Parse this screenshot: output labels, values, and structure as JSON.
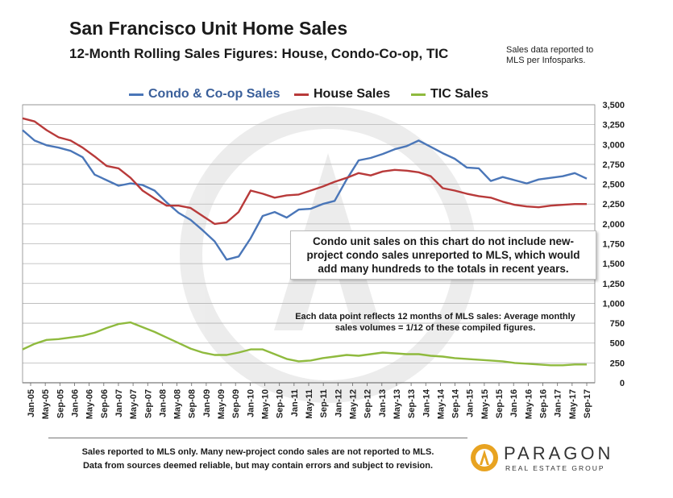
{
  "header": {
    "title": "San Francisco Unit Home Sales",
    "subtitle": "12-Month Rolling Sales Figures: House, Condo-Co-op, TIC",
    "source_note": "Sales data reported to MLS per Infosparks."
  },
  "annotations": {
    "note_box": "Condo unit sales on this chart do not include new-project condo sales unreported to MLS, which would add many hundreds to the totals in recent years.",
    "note_data_point": "Each data point reflects 12 months of MLS sales:  Average monthly sales volumes = 1/12 of these compiled figures."
  },
  "footer": {
    "line1": "Sales reported to MLS only. Many new-project condo sales are not reported to MLS.",
    "line2": "Data from sources deemed reliable, but may contain errors and subject to revision."
  },
  "logo": {
    "name": "PARAGON",
    "tagline": "REAL ESTATE GROUP",
    "icon": "paragon-logo-icon",
    "accent": "#e8a321"
  },
  "chart_data": {
    "type": "line",
    "title": "San Francisco Unit Home Sales",
    "subtitle": "12-Month Rolling Sales Figures: House, Condo-Co-op, TIC",
    "ylim": [
      0,
      3500
    ],
    "yticks": [
      "0",
      "250",
      "500",
      "750",
      "1,000",
      "1,250",
      "1,500",
      "1,750",
      "2,000",
      "2,250",
      "2,500",
      "2,750",
      "3,000",
      "3,250",
      "3,500"
    ],
    "xticks": [
      "Jan-05",
      "May-05",
      "Sep-05",
      "Jan-06",
      "May-06",
      "Sep-06",
      "Jan-07",
      "May-07",
      "Sep-07",
      "Jan-08",
      "May-08",
      "Sep-08",
      "Jan-09",
      "May-09",
      "Sep-09",
      "Jan-10",
      "May-10",
      "Sep-10",
      "Jan-11",
      "May-11",
      "Sep-11",
      "Jan-12",
      "May-12",
      "Sep-12",
      "Jan-13",
      "May-13",
      "Sep-13",
      "Jan-14",
      "May-14",
      "Sep-14",
      "Jan-15",
      "May-15",
      "Sep-15",
      "Jan-16",
      "May-16",
      "Sep-16",
      "Jan-17",
      "May-17",
      "Sep-17"
    ],
    "grid": true,
    "legend_position": "top",
    "series": [
      {
        "name": "Condo & Co-op Sales",
        "color": "#4a76b8",
        "values": [
          3180,
          3050,
          2990,
          2960,
          2920,
          2840,
          2620,
          2550,
          2480,
          2510,
          2490,
          2420,
          2270,
          2140,
          2050,
          1920,
          1780,
          1550,
          1590,
          1820,
          2100,
          2150,
          2080,
          2180,
          2190,
          2250,
          2290,
          2560,
          2800,
          2830,
          2880,
          2940,
          2980,
          3050,
          2970,
          2890,
          2820,
          2710,
          2700,
          2540,
          2590,
          2550,
          2510,
          2560,
          2580,
          2600,
          2640,
          2570
        ]
      },
      {
        "name": "House Sales",
        "color": "#b83a3a",
        "values": [
          3330,
          3290,
          3180,
          3090,
          3050,
          2960,
          2850,
          2730,
          2700,
          2580,
          2420,
          2320,
          2230,
          2230,
          2200,
          2100,
          2000,
          2020,
          2150,
          2420,
          2380,
          2330,
          2360,
          2370,
          2420,
          2470,
          2530,
          2580,
          2640,
          2610,
          2660,
          2680,
          2670,
          2650,
          2600,
          2450,
          2420,
          2380,
          2350,
          2330,
          2280,
          2240,
          2220,
          2210,
          2230,
          2240,
          2250,
          2250
        ]
      },
      {
        "name": "TIC Sales",
        "color": "#8fba3e",
        "values": [
          420,
          490,
          540,
          550,
          570,
          590,
          630,
          690,
          740,
          760,
          700,
          640,
          570,
          500,
          430,
          380,
          350,
          350,
          380,
          420,
          420,
          360,
          300,
          270,
          280,
          310,
          330,
          350,
          340,
          360,
          380,
          370,
          360,
          360,
          340,
          330,
          310,
          300,
          290,
          280,
          270,
          250,
          240,
          230,
          220,
          220,
          230,
          230
        ]
      }
    ]
  }
}
